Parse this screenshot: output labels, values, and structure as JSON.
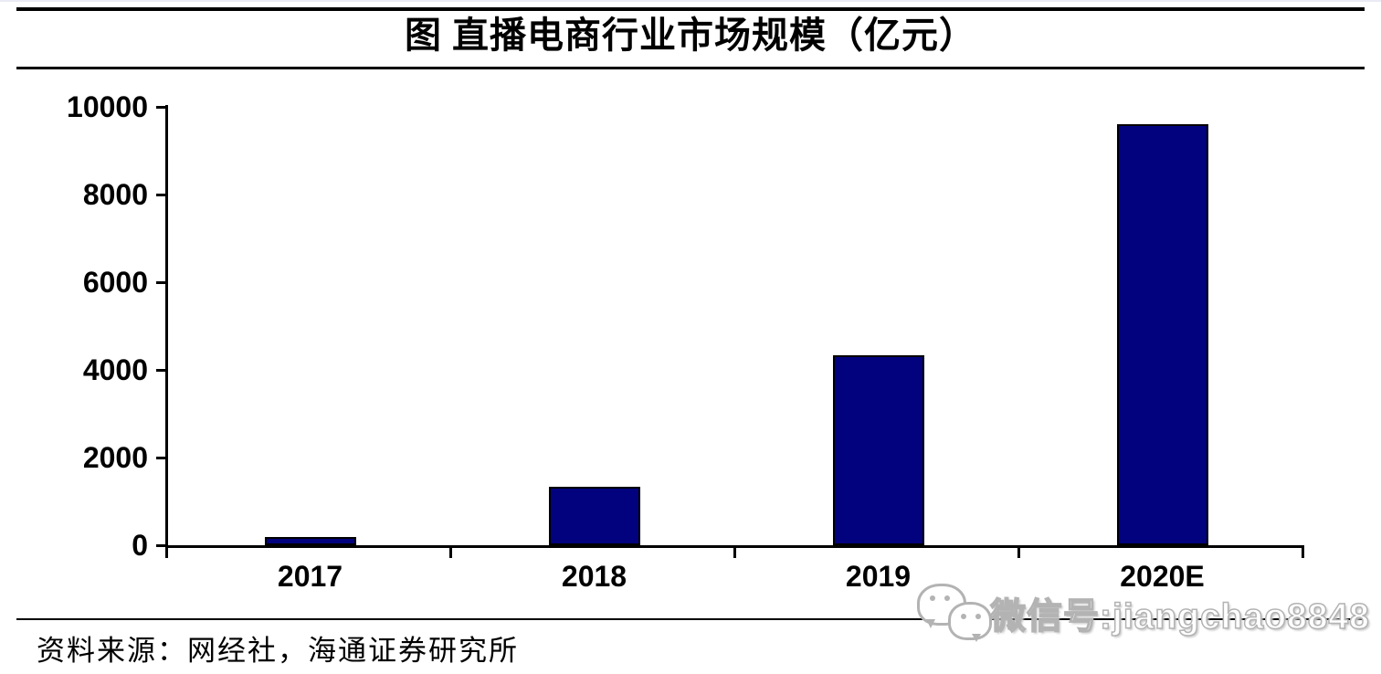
{
  "page": {
    "title": "图  直播电商行业市场规模（亿元）",
    "source_note": "资料来源：网经社，海通证券研究所",
    "watermark": {
      "icon": "wechat-icon",
      "text": "微信号:jiangchao8848"
    }
  },
  "chart_data": {
    "type": "bar",
    "title": "图  直播电商行业市场规模（亿元）",
    "categories": [
      "2017",
      "2018",
      "2019",
      "2020E"
    ],
    "values": [
      190,
      1330,
      4338,
      9610
    ],
    "unit": "亿元",
    "xlabel": "",
    "ylabel": "",
    "ylim": [
      0,
      10000
    ],
    "yticks": [
      0,
      2000,
      4000,
      6000,
      8000,
      10000
    ],
    "grid": false,
    "legend": "none",
    "bar_color": "#02027E",
    "bar_border_color": "#000000",
    "axis_color": "#000000"
  }
}
